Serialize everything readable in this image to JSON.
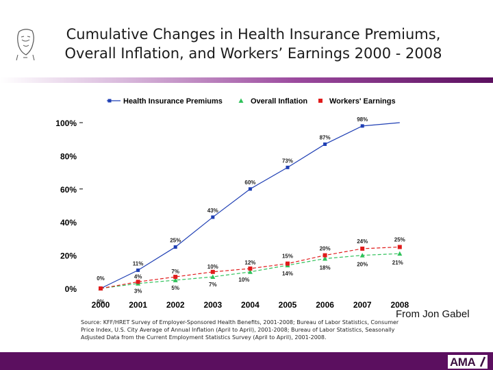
{
  "slide": {
    "title_line1": "Cumulative Changes in Health Insurance Premiums,",
    "title_line2": "Overall Inflation, and Workers’ Earnings  2000 - 2008",
    "credit": "From Jon Gabel",
    "source": "Source: KFF/HRET Survey of Employer-Sponsored Health Benefits, 2001-2008; Bureau of Labor Statistics, Consumer Price Index, U.S. City Average of Annual Inflation (April to April), 2001-2008; Bureau of Labor Statistics, Seasonally Adjusted Data from the Current Employment Statistics Survey (April to April), 2001-2008.",
    "logo_text": "AMA",
    "colors": {
      "footer": "#5b0f5f",
      "divider": "#8a3a8d"
    }
  },
  "chart_data": {
    "type": "line",
    "x": [
      "2000",
      "2001",
      "2002",
      "2003",
      "2004",
      "2005",
      "2006",
      "2007",
      "2008"
    ],
    "y_ticks": [
      "0%",
      "20%",
      "40%",
      "60%",
      "80%",
      "100%"
    ],
    "ylim": [
      0,
      100
    ],
    "legend_position": "top",
    "grid": false,
    "series": [
      {
        "name": "Health Insurance Premiums",
        "color": "#1f3fb4",
        "marker": "square",
        "dash": "solid",
        "values": [
          0,
          11,
          25,
          43,
          60,
          73,
          87,
          98,
          100
        ],
        "labels": [
          "0%",
          "11%",
          "25%",
          "43%",
          "60%",
          "73%",
          "87%",
          "98%",
          ""
        ]
      },
      {
        "name": "Overall Inflation",
        "color": "#2fc15a",
        "marker": "triangle",
        "dash": "dashed",
        "values": [
          0,
          3,
          5,
          7,
          10,
          14,
          18,
          20,
          21
        ],
        "labels": [
          "0%",
          "3%",
          "5%",
          "7%",
          "10%",
          "14%",
          "18%",
          "20%",
          "21%"
        ]
      },
      {
        "name": "Workers' Earnings",
        "color": "#e01b1b",
        "marker": "square",
        "dash": "dashed",
        "values": [
          0,
          4,
          7,
          10,
          12,
          15,
          20,
          24,
          25
        ],
        "labels": [
          "",
          "4%",
          "7%",
          "10%",
          "12%",
          "15%",
          "20%",
          "24%",
          "25%"
        ]
      }
    ]
  }
}
